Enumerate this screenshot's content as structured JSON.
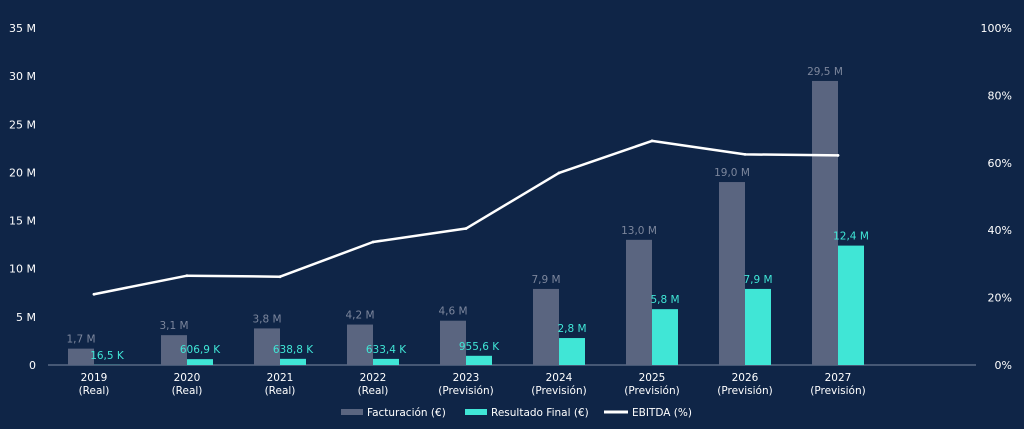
{
  "chart_data": {
    "type": "bar",
    "title": "",
    "xlabel": "",
    "ylabel": "",
    "categories": [
      [
        "2019",
        "(Real)"
      ],
      [
        "2020",
        "(Real)"
      ],
      [
        "2021",
        "(Real)"
      ],
      [
        "2022",
        "(Real)"
      ],
      [
        "2023",
        "(Previsión)"
      ],
      [
        "2024",
        "(Previsión)"
      ],
      [
        "2025",
        "(Previsión)"
      ],
      [
        "2026",
        "(Previsión)"
      ],
      [
        "2027",
        "(Previsión)"
      ]
    ],
    "y_left": {
      "min": 0,
      "max": 35,
      "ticks": [
        0,
        5,
        10,
        15,
        20,
        25,
        30,
        35
      ],
      "tick_labels": [
        "0",
        "5 M",
        "10 M",
        "15 M",
        "20 M",
        "25 M",
        "30 M",
        "35 M"
      ]
    },
    "y_right": {
      "min": 0,
      "max": 100,
      "ticks": [
        0,
        20,
        40,
        60,
        80,
        100
      ],
      "tick_labels": [
        "0%",
        "20%",
        "40%",
        "60%",
        "80%",
        "100%"
      ]
    },
    "grid": false,
    "legend_position": "bottom",
    "series": [
      {
        "name": "Facturación (€)",
        "kind": "bar",
        "axis": "left",
        "color": "#5a6580",
        "label_color": "#7c869c",
        "values": [
          1.7,
          3.1,
          3.8,
          4.2,
          4.6,
          7.9,
          13.0,
          19.0,
          29.5
        ],
        "labels": [
          "1,7 M",
          "3,1 M",
          "3,8 M",
          "4,2 M",
          "4,6 M",
          "7,9 M",
          "13,0 M",
          "19,0 M",
          "29,5 M"
        ]
      },
      {
        "name": "Resultado Final (€)",
        "kind": "bar",
        "axis": "left",
        "color": "#40e6d6",
        "label_color": "#40e6d6",
        "values": [
          0.0165,
          0.6069,
          0.6388,
          0.6334,
          0.9556,
          2.8,
          5.8,
          7.9,
          12.4
        ],
        "labels": [
          "16,5 K",
          "606,9 K",
          "638,8 K",
          "633,4 K",
          "955,6 K",
          "2,8 M",
          "5,8 M",
          "7,9 M",
          "12,4 M"
        ]
      },
      {
        "name": "EBITDA (%)",
        "kind": "line",
        "axis": "right",
        "color": "#ffffff",
        "values": [
          21,
          26.5,
          26.2,
          36.5,
          40.5,
          57,
          66.5,
          62.5,
          62.2
        ]
      }
    ]
  }
}
